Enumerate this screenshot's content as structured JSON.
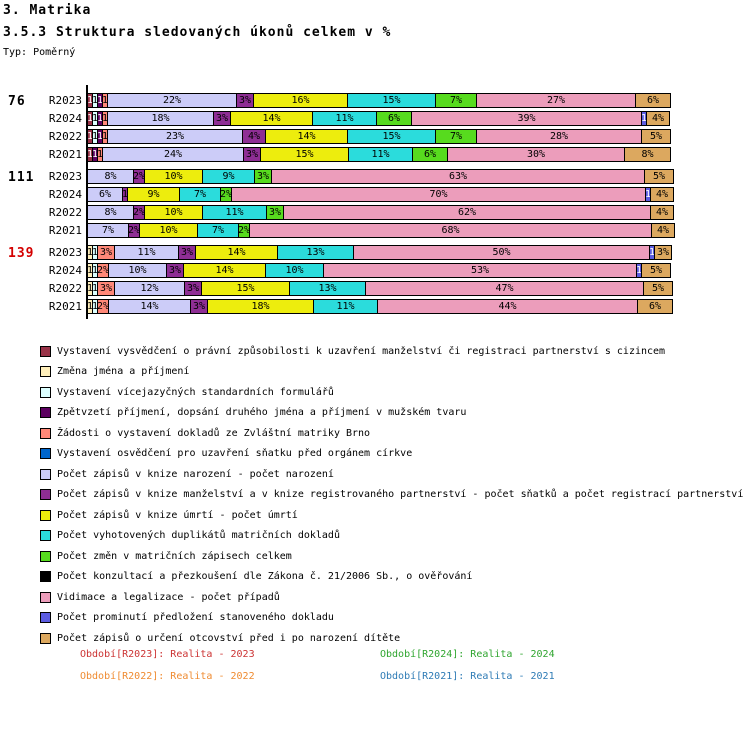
{
  "header": {
    "title": "3. Matrika",
    "subtitle": "3.5.3 Struktura sledovaných úkonů celkem v %",
    "type_label": "Typ: Poměrný"
  },
  "chart_data": {
    "type": "bar",
    "stacked": true,
    "orientation": "horizontal",
    "unit": "%",
    "xlim": [
      0,
      100
    ],
    "grid": false,
    "colors": {
      "maroon": "#993348",
      "pale_yellow": "#FFEFBB",
      "pale_cyan": "#DCFFFF",
      "dark_purple": "#5C0060",
      "salmon": "#FF8878",
      "blue": "#0066CC",
      "lavender": "#CCCCF8",
      "violet": "#8E2E94",
      "yellow": "#EDED0D",
      "cyan": "#2BDCDC",
      "green": "#57DB1E",
      "black": "#000000",
      "pink": "#EC9DBB",
      "blue_violet": "#5C5CE0",
      "tan": "#DCA85F"
    },
    "light_text_keys": [
      "maroon",
      "dark_purple",
      "blue",
      "black",
      "blue_violet"
    ],
    "legend": [
      {
        "key": "maroon",
        "label": "Vystavení vysvědčení o právní způsobilosti k uzavření manželství či registraci partnerství s cizincem"
      },
      {
        "key": "pale_yellow",
        "label": "Změna jména a příjmení"
      },
      {
        "key": "pale_cyan",
        "label": "Vystavení vícejazyčných standardních formulářů"
      },
      {
        "key": "dark_purple",
        "label": "Zpětvzetí příjmení, dopsání druhého jména a příjmení v mužském tvaru"
      },
      {
        "key": "salmon",
        "label": "Žádosti o vystavení dokladů ze Zvláštní matriky Brno"
      },
      {
        "key": "blue",
        "label": "Vystavení osvědčení pro uzavření sňatku před orgánem církve"
      },
      {
        "key": "lavender",
        "label": "Počet zápisů v knize narození - počet narození"
      },
      {
        "key": "violet",
        "label": "Počet zápisů v knize manželství a v knize registrovaného partnerství - počet sňatků a počet registrací partnerství"
      },
      {
        "key": "yellow",
        "label": "Počet zápisů v knize úmrtí - počet úmrtí"
      },
      {
        "key": "cyan",
        "label": "Počet vyhotovených duplikátů matričních dokladů"
      },
      {
        "key": "green",
        "label": "Počet změn v matričních zápisech celkem"
      },
      {
        "key": "black",
        "label": "Počet  konzultací a přezkoušení dle Zákona č. 21/2006 Sb., o ověřování"
      },
      {
        "key": "pink",
        "label": "Vidimace a legalizace - počet případů"
      },
      {
        "key": "blue_violet",
        "label": "Počet prominutí předložení stanoveného dokladu"
      },
      {
        "key": "tan",
        "label": "Počet zápisů o určení otcovství před i po narození dítěte"
      }
    ],
    "groups": [
      {
        "label": "76",
        "label_color": "#000000",
        "rows": [
          {
            "period": "R2023",
            "segments": [
              {
                "key": "maroon",
                "value": 1
              },
              {
                "key": "pale_cyan",
                "value": 1
              },
              {
                "key": "dark_purple",
                "value": 1
              },
              {
                "key": "salmon",
                "value": 1
              },
              {
                "key": "lavender",
                "value": 22
              },
              {
                "key": "violet",
                "value": 3
              },
              {
                "key": "yellow",
                "value": 16
              },
              {
                "key": "cyan",
                "value": 15
              },
              {
                "key": "green",
                "value": 7
              },
              {
                "key": "pink",
                "value": 27
              },
              {
                "key": "tan",
                "value": 6
              }
            ]
          },
          {
            "period": "R2024",
            "segments": [
              {
                "key": "maroon",
                "value": 1
              },
              {
                "key": "pale_cyan",
                "value": 1
              },
              {
                "key": "dark_purple",
                "value": 1
              },
              {
                "key": "salmon",
                "value": 1
              },
              {
                "key": "lavender",
                "value": 18
              },
              {
                "key": "violet",
                "value": 3
              },
              {
                "key": "yellow",
                "value": 14
              },
              {
                "key": "cyan",
                "value": 11
              },
              {
                "key": "green",
                "value": 6
              },
              {
                "key": "pink",
                "value": 39
              },
              {
                "key": "blue_violet",
                "value": 1
              },
              {
                "key": "tan",
                "value": 4
              }
            ]
          },
          {
            "period": "R2022",
            "segments": [
              {
                "key": "maroon",
                "value": 1
              },
              {
                "key": "pale_cyan",
                "value": 1
              },
              {
                "key": "dark_purple",
                "value": 1
              },
              {
                "key": "salmon",
                "value": 1
              },
              {
                "key": "lavender",
                "value": 23
              },
              {
                "key": "violet",
                "value": 4
              },
              {
                "key": "yellow",
                "value": 14
              },
              {
                "key": "cyan",
                "value": 15
              },
              {
                "key": "green",
                "value": 7
              },
              {
                "key": "pink",
                "value": 28
              },
              {
                "key": "tan",
                "value": 5
              }
            ]
          },
          {
            "period": "R2021",
            "segments": [
              {
                "key": "maroon",
                "value": 1
              },
              {
                "key": "dark_purple",
                "value": 1
              },
              {
                "key": "salmon",
                "value": 1
              },
              {
                "key": "lavender",
                "value": 24
              },
              {
                "key": "violet",
                "value": 3
              },
              {
                "key": "yellow",
                "value": 15
              },
              {
                "key": "cyan",
                "value": 11
              },
              {
                "key": "green",
                "value": 6
              },
              {
                "key": "pink",
                "value": 30
              },
              {
                "key": "tan",
                "value": 8
              }
            ]
          }
        ]
      },
      {
        "label": "111",
        "label_color": "#000000",
        "rows": [
          {
            "period": "R2023",
            "segments": [
              {
                "key": "lavender",
                "value": 8
              },
              {
                "key": "violet",
                "value": 2
              },
              {
                "key": "yellow",
                "value": 10
              },
              {
                "key": "cyan",
                "value": 9
              },
              {
                "key": "green",
                "value": 3
              },
              {
                "key": "pink",
                "value": 63
              },
              {
                "key": "tan",
                "value": 5
              }
            ]
          },
          {
            "period": "R2024",
            "segments": [
              {
                "key": "lavender",
                "value": 6
              },
              {
                "key": "violet",
                "value": 1
              },
              {
                "key": "yellow",
                "value": 9
              },
              {
                "key": "cyan",
                "value": 7
              },
              {
                "key": "green",
                "value": 2
              },
              {
                "key": "pink",
                "value": 70
              },
              {
                "key": "blue_violet",
                "value": 1
              },
              {
                "key": "tan",
                "value": 4
              }
            ]
          },
          {
            "period": "R2022",
            "segments": [
              {
                "key": "lavender",
                "value": 8
              },
              {
                "key": "violet",
                "value": 2
              },
              {
                "key": "yellow",
                "value": 10
              },
              {
                "key": "cyan",
                "value": 11
              },
              {
                "key": "green",
                "value": 3
              },
              {
                "key": "pink",
                "value": 62
              },
              {
                "key": "tan",
                "value": 4
              }
            ]
          },
          {
            "period": "R2021",
            "segments": [
              {
                "key": "lavender",
                "value": 7
              },
              {
                "key": "violet",
                "value": 2
              },
              {
                "key": "yellow",
                "value": 10
              },
              {
                "key": "cyan",
                "value": 7
              },
              {
                "key": "green",
                "value": 2
              },
              {
                "key": "pink",
                "value": 68
              },
              {
                "key": "tan",
                "value": 4
              }
            ]
          }
        ]
      },
      {
        "label": "139",
        "label_color": "#D40000",
        "rows": [
          {
            "period": "R2023",
            "segments": [
              {
                "key": "pale_yellow",
                "value": 1
              },
              {
                "key": "pale_cyan",
                "value": 1
              },
              {
                "key": "salmon",
                "value": 3
              },
              {
                "key": "lavender",
                "value": 11
              },
              {
                "key": "violet",
                "value": 3
              },
              {
                "key": "yellow",
                "value": 14
              },
              {
                "key": "cyan",
                "value": 13
              },
              {
                "key": "pink",
                "value": 50
              },
              {
                "key": "blue_violet",
                "value": 1
              },
              {
                "key": "tan",
                "value": 3
              }
            ]
          },
          {
            "period": "R2024",
            "segments": [
              {
                "key": "pale_yellow",
                "value": 1
              },
              {
                "key": "pale_cyan",
                "value": 1
              },
              {
                "key": "salmon",
                "value": 2
              },
              {
                "key": "lavender",
                "value": 10
              },
              {
                "key": "violet",
                "value": 3
              },
              {
                "key": "yellow",
                "value": 14
              },
              {
                "key": "cyan",
                "value": 10
              },
              {
                "key": "pink",
                "value": 53
              },
              {
                "key": "blue_violet",
                "value": 1
              },
              {
                "key": "tan",
                "value": 5
              }
            ]
          },
          {
            "period": "R2022",
            "segments": [
              {
                "key": "pale_yellow",
                "value": 1
              },
              {
                "key": "pale_cyan",
                "value": 1
              },
              {
                "key": "salmon",
                "value": 3
              },
              {
                "key": "lavender",
                "value": 12
              },
              {
                "key": "violet",
                "value": 3
              },
              {
                "key": "yellow",
                "value": 15
              },
              {
                "key": "cyan",
                "value": 13
              },
              {
                "key": "pink",
                "value": 47
              },
              {
                "key": "tan",
                "value": 5
              }
            ]
          },
          {
            "period": "R2021",
            "segments": [
              {
                "key": "pale_yellow",
                "value": 1
              },
              {
                "key": "pale_cyan",
                "value": 1
              },
              {
                "key": "salmon",
                "value": 2
              },
              {
                "key": "lavender",
                "value": 14
              },
              {
                "key": "violet",
                "value": 3
              },
              {
                "key": "yellow",
                "value": 18
              },
              {
                "key": "cyan",
                "value": 11
              },
              {
                "key": "pink",
                "value": 44
              },
              {
                "key": "tan",
                "value": 6
              }
            ]
          }
        ]
      }
    ],
    "periods": [
      {
        "label": "Období[R2023]: Realita - 2023",
        "color": "#CC3333"
      },
      {
        "label": "Období[R2024]: Realita - 2024",
        "color": "#2FA52F"
      },
      {
        "label": "Období[R2022]: Realita - 2022",
        "color": "#EF8B31"
      },
      {
        "label": "Období[R2021]: Realita - 2021",
        "color": "#2E7BB5"
      }
    ]
  }
}
